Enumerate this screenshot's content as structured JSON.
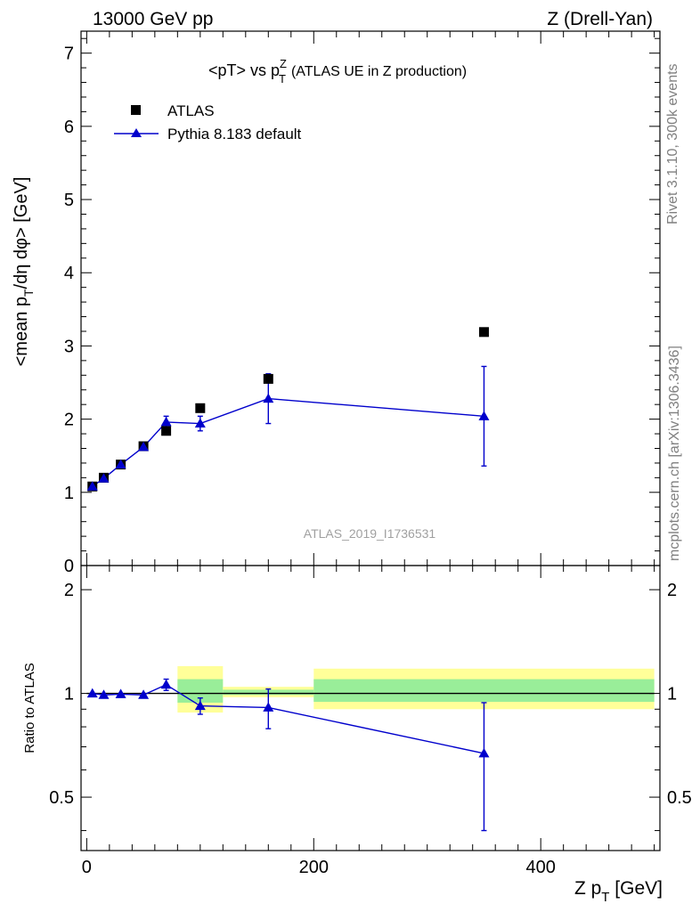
{
  "header": {
    "energy_label": "13000 GeV pp",
    "process_label": "Z (Drell-Yan)"
  },
  "side_labels": {
    "rivet": "Rivet 3.1.10,  300k events",
    "source": "mcplots.cern.ch [arXiv:1306.3436]"
  },
  "watermark": "ATLAS_2019_I1736531",
  "chart_data": [
    {
      "type": "scatter",
      "title": "<pT> vs pTZ (ATLAS UE in Z production)",
      "title_parts": {
        "lead": "<pT> vs p",
        "sup": "Z",
        "sub": "T",
        "tail": "(ATLAS UE in Z production)"
      },
      "ylabel": "<mean pT/dη dφ> [GeV]",
      "ylabel_parts": {
        "a": "<mean p",
        "sub": "T",
        "b": "/dη dφ> [GeV]"
      },
      "xlim": [
        -5,
        505
      ],
      "ylim": [
        0,
        7.3
      ],
      "yticks": [
        0,
        1,
        2,
        3,
        4,
        5,
        6,
        7
      ],
      "legend": {
        "placement": "top-left",
        "entries": [
          "ATLAS",
          "Pythia 8.183 default"
        ]
      },
      "series": [
        {
          "name": "ATLAS",
          "marker": "square",
          "x": [
            5,
            15,
            30,
            50,
            70,
            100,
            160,
            350
          ],
          "y": [
            1.08,
            1.2,
            1.38,
            1.63,
            1.84,
            2.15,
            2.55,
            3.19
          ]
        },
        {
          "name": "Pythia 8.183 default",
          "marker": "triangle",
          "color": "#0000cc",
          "x": [
            5,
            15,
            30,
            50,
            70,
            100,
            160,
            350
          ],
          "y": [
            1.08,
            1.19,
            1.38,
            1.62,
            1.96,
            1.94,
            2.28,
            2.04
          ],
          "yerr": [
            0.02,
            0.02,
            0.02,
            0.03,
            0.08,
            0.1,
            0.34,
            0.68
          ]
        }
      ]
    },
    {
      "type": "line",
      "ylabel": "Ratio to ATLAS",
      "xlabel": "Z pT [GeV]",
      "xlabel_parts": {
        "a": "Z p",
        "sub": "T",
        "b": " [GeV]"
      },
      "xlim": [
        -5,
        505
      ],
      "ylim": [
        0.35,
        2.35
      ],
      "xticks": [
        0,
        200,
        400
      ],
      "yticks": [
        0.5,
        1,
        2
      ],
      "ytick_labels": [
        "0.5",
        "1",
        "2"
      ],
      "bands": [
        {
          "x0": 80,
          "x1": 120,
          "yellow": [
            0.88,
            1.2
          ],
          "green": [
            0.94,
            1.1
          ]
        },
        {
          "x0": 120,
          "x1": 200,
          "yellow": [
            0.975,
            1.045
          ],
          "green": [
            0.99,
            1.025
          ]
        },
        {
          "x0": 200,
          "x1": 500,
          "yellow": [
            0.9,
            1.18
          ],
          "green": [
            0.945,
            1.1
          ]
        }
      ],
      "series": [
        {
          "name": "Pythia 8.183 default",
          "color": "#0000cc",
          "x": [
            5,
            15,
            30,
            50,
            70,
            100,
            160,
            350
          ],
          "y": [
            1.0,
            0.99,
            0.995,
            0.99,
            1.06,
            0.92,
            0.91,
            0.67
          ],
          "yerr": [
            0.01,
            0.01,
            0.01,
            0.01,
            0.04,
            0.05,
            0.12,
            0.27
          ]
        }
      ]
    }
  ]
}
